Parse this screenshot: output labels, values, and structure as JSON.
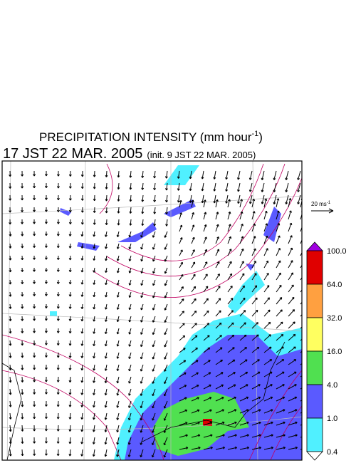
{
  "header": {
    "title": "PRECIPITATION INTENSITY (mm hour",
    "title_superscript": "-1",
    "title_close": ")",
    "valid_time": "17 JST 22 MAR. 2005",
    "init_time": "(init. 9 JST 22 MAR. 2005)"
  },
  "vector_legend": {
    "label": "20 ms",
    "superscript": "-1"
  },
  "colorbar": {
    "labels": [
      "100.0",
      "64.0",
      "32.0",
      "16.0",
      "4.0",
      "1.0",
      "0.4"
    ],
    "colors": [
      "#a000e0",
      "#e00000",
      "#ffa040",
      "#ffff60",
      "#50e050",
      "#5a5aff",
      "#50f0ff",
      "#ffffff"
    ]
  }
}
